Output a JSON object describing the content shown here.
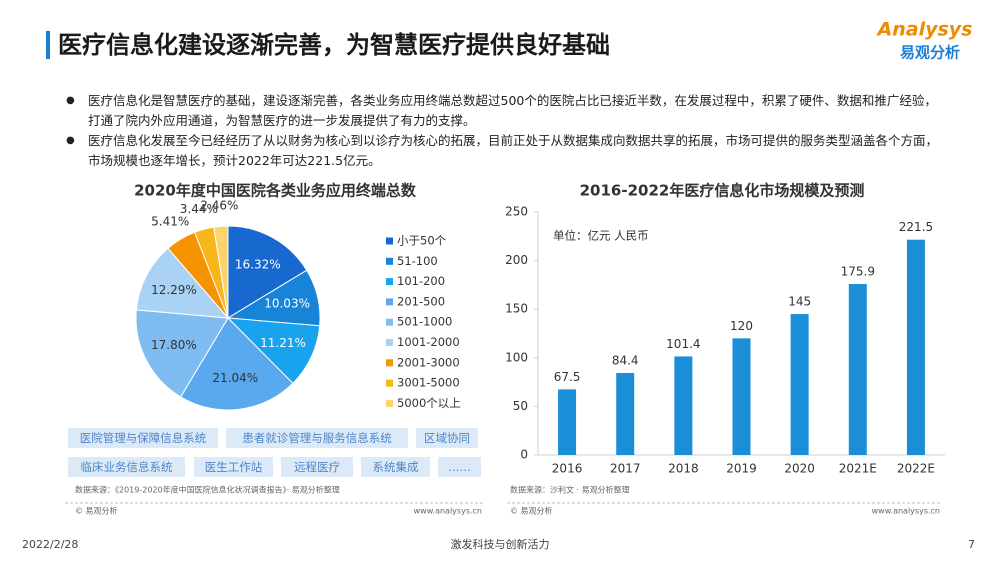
{
  "header": {
    "title": "医疗信息化建设逐渐完善，为智慧医疗提供良好基础"
  },
  "logo": {
    "brand": "Analysys",
    "name": "易观分析"
  },
  "bullets": [
    "医疗信息化是智慧医疗的基础，建设逐渐完善，各类业务应用终端总数超过500个的医院占比已接近半数，在发展过程中，积累了硬件、数据和推广经验，打通了院内外应用通道，为智慧医疗的进一步发展提供了有力的支撑。",
    "医疗信息化发展至今已经经历了从以财务为核心到以诊疗为核心的拓展，目前正处于从数据集成向数据共享的拓展，市场可提供的服务类型涵盖各个方面，市场规模也逐年增长，预计2022年可达221.5亿元。"
  ],
  "chart_data": [
    {
      "type": "pie",
      "title": "2020年度中国医院各类业务应用终端总数",
      "categories": [
        "小于50个",
        "51-100",
        "101-200",
        "201-500",
        "501-1000",
        "1001-2000",
        "2001-3000",
        "3001-5000",
        "5000个以上"
      ],
      "values": [
        16.32,
        10.03,
        11.21,
        21.04,
        17.8,
        12.29,
        5.41,
        3.44,
        2.46
      ],
      "value_labels": [
        "16.32%",
        "10.03%",
        "11.21%",
        "21.04%",
        "17.80%",
        "12.29%",
        "5.41%",
        "3.44%",
        "2.46%"
      ],
      "colors": [
        "#1769cf",
        "#1784d8",
        "#19a3ee",
        "#5aa8ee",
        "#7ebcf2",
        "#a9d2f5",
        "#f59400",
        "#f8b61c",
        "#fbd56b"
      ],
      "legend": "right"
    },
    {
      "type": "bar",
      "title": "2016-2022年医疗信息化市场规模及预测",
      "subtitle": "单位：亿元 人民币",
      "categories": [
        "2016",
        "2017",
        "2018",
        "2019",
        "2020",
        "2021E",
        "2022E"
      ],
      "values": [
        67.5,
        84.4,
        101.4,
        120,
        145,
        175.9,
        221.5
      ],
      "color": "#1a8fd8",
      "ylim": [
        0,
        250
      ],
      "yticks": [
        0,
        50,
        100,
        150,
        200,
        250
      ],
      "grid": false
    }
  ],
  "tags": [
    "医院管理与保障信息系统",
    "患者就诊管理与服务信息系统",
    "区域协同",
    "临床业务信息系统",
    "医生工作站",
    "远程医疗",
    "系统集成",
    "……"
  ],
  "sources": [
    "数据来源：《2019-2020年度中国医院信息化状况调查报告》· 易观分析整理",
    "数据来源：沙利文 · 易观分析整理"
  ],
  "copyright": [
    "© 易观分析",
    "© 易观分析"
  ],
  "website": [
    "www.analysys.cn",
    "www.analysys.cn"
  ],
  "footer": {
    "date": "2022/2/28",
    "slogan": "激发科技与创新活力",
    "page": "7"
  }
}
